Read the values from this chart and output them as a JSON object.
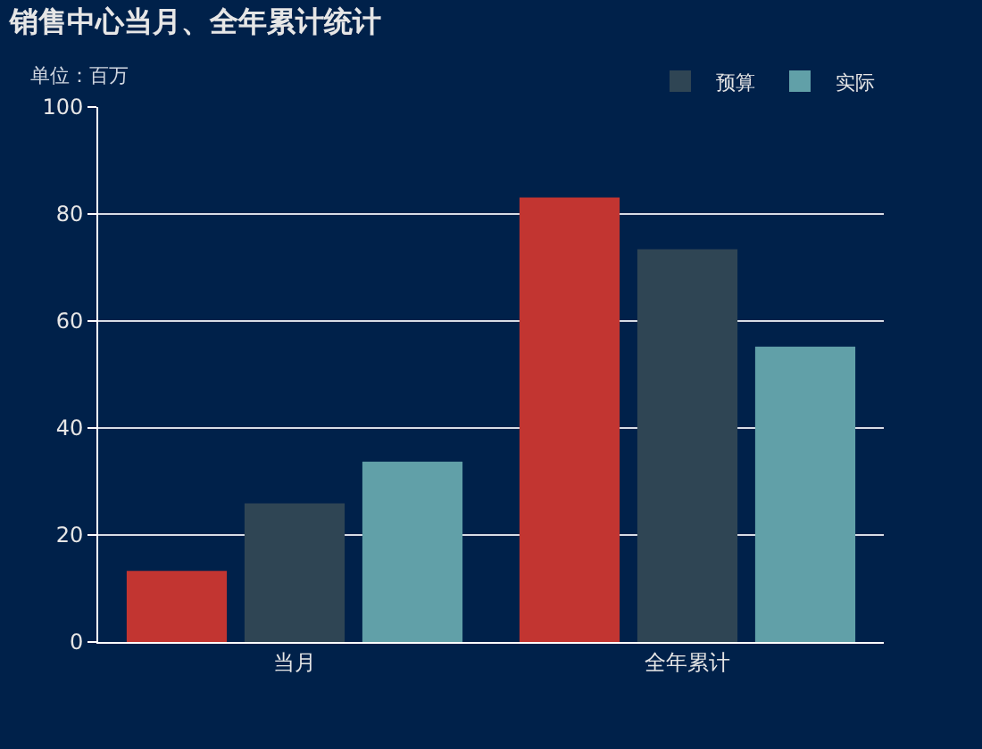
{
  "chart_data": {
    "type": "bar",
    "title": "销售中心当月、全年累计统计",
    "subtitle": "单位：百万",
    "categories": [
      "当月",
      "全年累计"
    ],
    "series": [
      {
        "color": "#c23531",
        "values": [
          13.3,
          83.1
        ]
      },
      {
        "name": "预算",
        "color": "#2f4554",
        "values": [
          25.9,
          73.4
        ]
      },
      {
        "name": "实际",
        "color": "#61a0a8",
        "values": [
          33.7,
          55.2
        ]
      }
    ],
    "ylim": [
      0,
      100
    ],
    "yticks": [
      0,
      20,
      40,
      60,
      80,
      100
    ],
    "grid": "y",
    "legend": "top right"
  }
}
